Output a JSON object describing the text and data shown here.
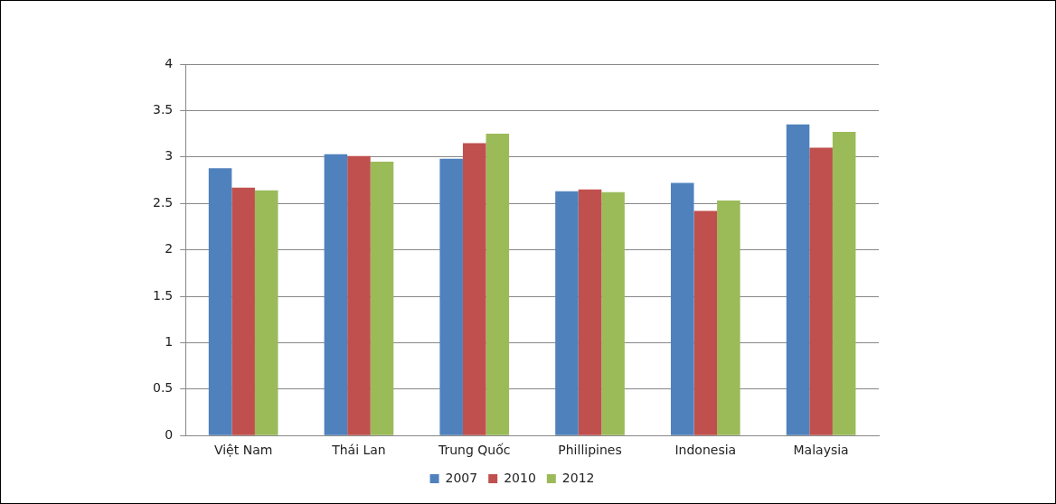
{
  "chart_data": {
    "type": "bar",
    "categories": [
      "Việt Nam",
      "Thái Lan",
      "Trung Quốc",
      "Phillipines",
      "Indonesia",
      "Malaysia"
    ],
    "series": [
      {
        "name": "2007",
        "color": "#4f81bd",
        "values": [
          2.88,
          3.03,
          2.98,
          2.63,
          2.72,
          3.35
        ]
      },
      {
        "name": "2010",
        "color": "#c0504d",
        "values": [
          2.67,
          3.01,
          3.15,
          2.65,
          2.42,
          3.1
        ]
      },
      {
        "name": "2012",
        "color": "#9bbb59",
        "values": [
          2.64,
          2.95,
          3.25,
          2.62,
          2.53,
          3.27
        ]
      }
    ],
    "ylim": [
      0,
      4
    ],
    "yticks": [
      0,
      0.5,
      1,
      1.5,
      2,
      2.5,
      3,
      3.5,
      4
    ],
    "grid": "y",
    "legend": "bottom"
  }
}
